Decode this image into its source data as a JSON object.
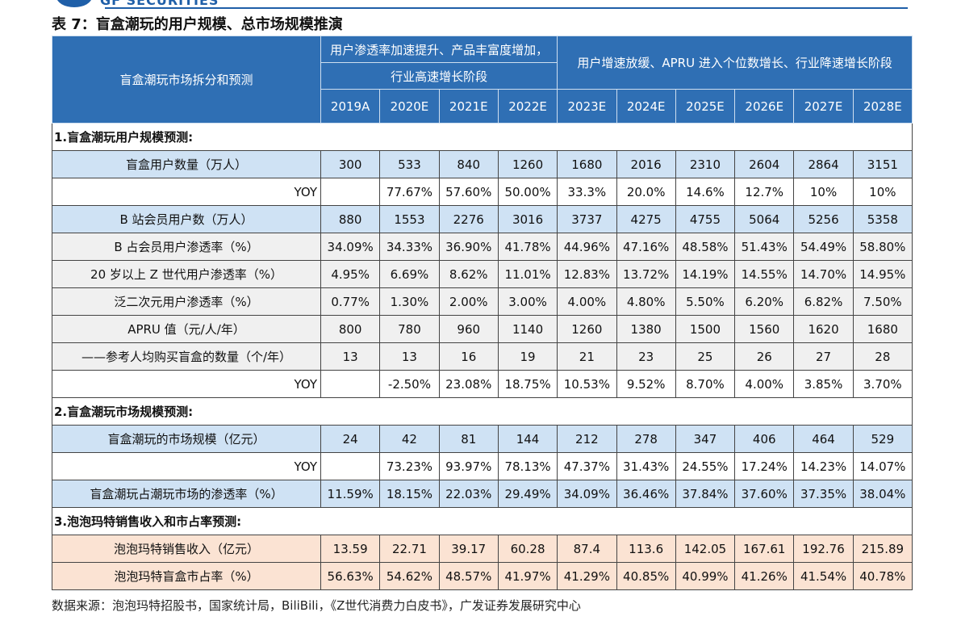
{
  "logo": "GF SECURITIES",
  "title": "表 7：盲盒潮玩的用户规模、总市场规模推演",
  "table": {
    "corner": "盲盒潮玩市场拆分和预测",
    "groups": [
      {
        "lines": [
          "用户渗透率加速提升、产品丰富度增加，",
          "行业高速增长阶段"
        ],
        "years": [
          "2019A",
          "2020E",
          "2021E",
          "2022E"
        ]
      },
      {
        "lines": [
          "用户增速放缓、APRU 进入个位数增长、行业降速增长阶段"
        ],
        "years": [
          "2023E",
          "2024E",
          "2025E",
          "2026E",
          "2027E",
          "2028E"
        ]
      }
    ],
    "rows": [
      {
        "section": "1.盲盒潮玩用户规模预测:"
      },
      {
        "label": "盲盒用户数量（万人）",
        "color": "#cfe2f4",
        "values": [
          "300",
          "533",
          "840",
          "1260",
          "1680",
          "2016",
          "2310",
          "2604",
          "2864",
          "3151"
        ]
      },
      {
        "label": "YOY",
        "align": "right",
        "color": "#ffffff",
        "values": [
          null,
          "77.67%",
          "57.60%",
          "50.00%",
          "33.3%",
          "20.0%",
          "14.6%",
          "12.7%",
          "10%",
          "10%"
        ]
      },
      {
        "label": "B 站会员用户数（万人）",
        "color": "#cfe2f4",
        "values": [
          "880",
          "1553",
          "2276",
          "3016",
          "3737",
          "4275",
          "4755",
          "5064",
          "5256",
          "5358"
        ]
      },
      {
        "label": "B 占会员用户渗透率（%）",
        "color": "#f0f0f0",
        "values": [
          "34.09%",
          "34.33%",
          "36.90%",
          "41.78%",
          "44.96%",
          "47.16%",
          "48.58%",
          "51.43%",
          "54.49%",
          "58.80%"
        ]
      },
      {
        "label": "20 岁以上 Z 世代用户渗透率（%）",
        "color": "#f0f0f0",
        "values": [
          "4.95%",
          "6.69%",
          "8.62%",
          "11.01%",
          "12.83%",
          "13.72%",
          "14.19%",
          "14.55%",
          "14.70%",
          "14.95%"
        ]
      },
      {
        "label": "泛二次元用户渗透率（%）",
        "color": "#f0f0f0",
        "values": [
          "0.77%",
          "1.30%",
          "2.00%",
          "3.00%",
          "4.00%",
          "4.80%",
          "5.50%",
          "6.20%",
          "6.82%",
          "7.50%"
        ]
      },
      {
        "label": "APRU 值（元/人/年）",
        "color": "#f0f0f0",
        "values": [
          "800",
          "780",
          "960",
          "1140",
          "1260",
          "1380",
          "1500",
          "1560",
          "1620",
          "1680"
        ]
      },
      {
        "label": "——参考人均购买盲盒的数量（个/年）",
        "color": "#f0f0f0",
        "values": [
          "13",
          "13",
          "16",
          "19",
          "21",
          "23",
          "25",
          "26",
          "27",
          "28"
        ]
      },
      {
        "label": "YOY",
        "align": "right",
        "color": "#ffffff",
        "values": [
          null,
          "-2.50%",
          "23.08%",
          "18.75%",
          "10.53%",
          "9.52%",
          "8.70%",
          "4.00%",
          "3.85%",
          "3.70%"
        ]
      },
      {
        "section": "2.盲盒潮玩市场规模预测:"
      },
      {
        "label": "盲盒潮玩的市场规模（亿元）",
        "color": "#cfe2f4",
        "values": [
          "24",
          "42",
          "81",
          "144",
          "212",
          "278",
          "347",
          "406",
          "464",
          "529"
        ]
      },
      {
        "label": "YOY",
        "align": "right",
        "color": "#ffffff",
        "values": [
          null,
          "73.23%",
          "93.97%",
          "78.13%",
          "47.37%",
          "31.43%",
          "24.55%",
          "17.24%",
          "14.23%",
          "14.07%"
        ]
      },
      {
        "label": "盲盒潮玩占潮玩市场的渗透率（%）",
        "color": "#cfe2f4",
        "values": [
          "11.59%",
          "18.15%",
          "22.03%",
          "29.49%",
          "34.09%",
          "36.46%",
          "37.84%",
          "37.60%",
          "37.35%",
          "38.04%"
        ]
      },
      {
        "section": "3.泡泡玛特销售收入和市占率预测:"
      },
      {
        "label": "泡泡玛特销售收入（亿元）",
        "color": "#fbe3d3",
        "values": [
          "13.59",
          "22.71",
          "39.17",
          "60.28",
          "87.4",
          "113.6",
          "142.05",
          "167.61",
          "192.76",
          "215.89"
        ]
      },
      {
        "label": "泡泡玛特盲盒市占率（%）",
        "color": "#fbe3d3",
        "values": [
          "56.63%",
          "54.62%",
          "48.57%",
          "41.97%",
          "41.29%",
          "40.85%",
          "40.99%",
          "41.26%",
          "41.54%",
          "40.78%"
        ]
      }
    ]
  },
  "source": "数据来源：泡泡玛特招股书，国家统计局，BiliBili，《Z世代消费力白皮书》，广发证券发展研究中心"
}
